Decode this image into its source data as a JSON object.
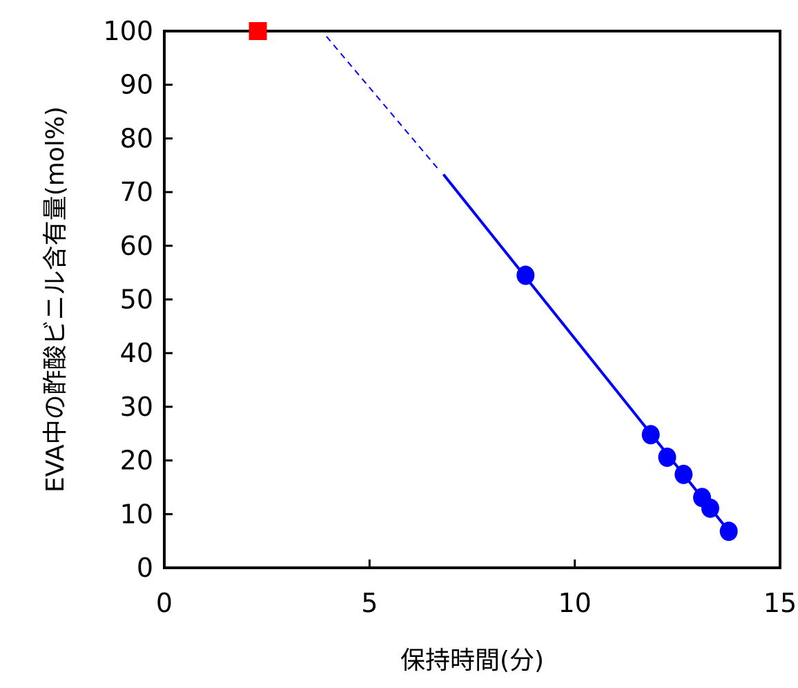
{
  "chart_data": {
    "type": "scatter",
    "title": "",
    "xlabel": "保持時間(分)",
    "ylabel": "EVA中の酢酸ビニル含有量(mol%)",
    "xlim": [
      0,
      15
    ],
    "ylim": [
      0,
      100
    ],
    "x_ticks": [
      0,
      5,
      10,
      15
    ],
    "y_ticks": [
      0,
      10,
      20,
      30,
      40,
      50,
      60,
      70,
      80,
      90,
      100
    ],
    "grid": false,
    "legend": "none",
    "series": [
      {
        "marker": "square",
        "color": "#ff0000",
        "points": [
          {
            "x": 2.28,
            "y": 100
          }
        ]
      },
      {
        "marker": "circle",
        "color": "#0000ff",
        "points": [
          {
            "x": 8.8,
            "y": 54.5
          },
          {
            "x": 11.85,
            "y": 24.8
          },
          {
            "x": 12.25,
            "y": 20.6
          },
          {
            "x": 12.65,
            "y": 17.4
          },
          {
            "x": 13.1,
            "y": 13.1
          },
          {
            "x": 13.3,
            "y": 11.1
          },
          {
            "x": 13.75,
            "y": 6.8
          }
        ]
      }
    ],
    "fit_line": {
      "color": "#0000ff",
      "solid": [
        {
          "x": 6.8,
          "y": 73.3
        },
        {
          "x": 13.85,
          "y": 5.9
        }
      ],
      "dashed": [
        {
          "x": 3.95,
          "y": 99.0
        },
        {
          "x": 6.65,
          "y": 74.5
        }
      ]
    }
  }
}
